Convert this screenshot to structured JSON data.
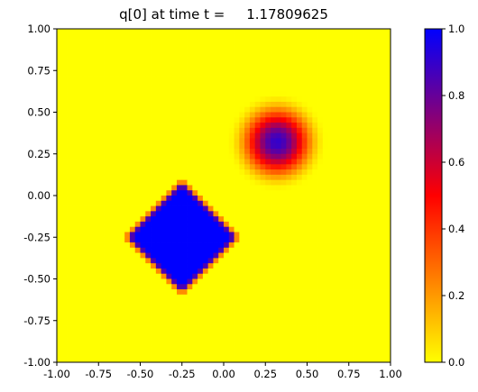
{
  "chart_data": {
    "type": "heatmap",
    "title": "q[0] at time t =     1.17809625",
    "xlabel": "",
    "ylabel": "",
    "xlim": [
      -1.0,
      1.0
    ],
    "ylim": [
      -1.0,
      1.0
    ],
    "x_ticks": [
      "-1.00",
      "-0.75",
      "-0.50",
      "-0.25",
      "0.00",
      "0.25",
      "0.50",
      "0.75",
      "1.00"
    ],
    "y_ticks": [
      "1.00",
      "0.75",
      "0.50",
      "0.25",
      "0.00",
      "-0.25",
      "-0.50",
      "-0.75",
      "-1.00"
    ],
    "grid": false,
    "grid_cells": 64,
    "colormap": {
      "name": "yellow-red-blue",
      "stops": [
        {
          "value": 0.0,
          "color": "#ffff00"
        },
        {
          "value": 0.5,
          "color": "#ff0000"
        },
        {
          "value": 1.0,
          "color": "#0000ff"
        }
      ]
    },
    "clim": [
      0.0,
      1.0
    ],
    "colorbar_ticks": [
      "1.0",
      "0.8",
      "0.6",
      "0.4",
      "0.2",
      "0.0"
    ],
    "features": [
      {
        "shape": "diamond",
        "center": [
          -0.25,
          -0.25
        ],
        "half_diagonal": 0.33,
        "peak": 1.0,
        "edge_width": 0.05
      },
      {
        "shape": "cosine-bell",
        "center": [
          0.32,
          0.32
        ],
        "radius": 0.3,
        "peak": 0.9
      }
    ]
  }
}
